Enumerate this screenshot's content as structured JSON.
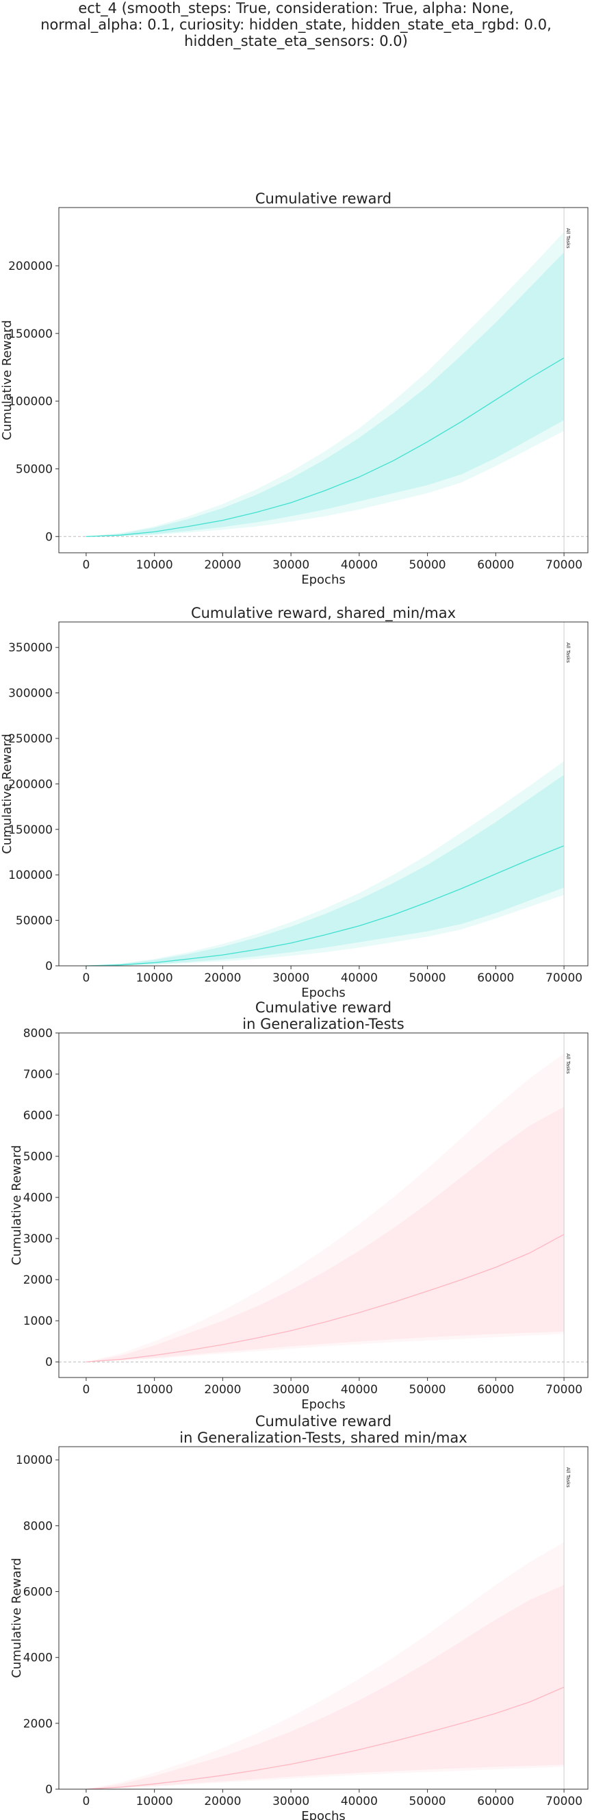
{
  "suptitle": [
    "ect_4 (smooth_steps: True, consideration: True, alpha: None,",
    "normal_alpha: 0.1, curiosity: hidden_state, hidden_state_eta_rgbd: 0.0,",
    "hidden_state_eta_sensors: 0.0)"
  ],
  "chart_data": [
    {
      "type": "line",
      "title": [
        "Cumulative reward"
      ],
      "xlabel": "Epochs",
      "ylabel": "Cumulative Reward",
      "xlim": [
        -4000,
        73500
      ],
      "ylim": [
        -12000,
        243000
      ],
      "xticks": [
        0,
        10000,
        20000,
        30000,
        40000,
        50000,
        60000,
        70000
      ],
      "yticks": [
        0,
        50000,
        100000,
        150000,
        200000
      ],
      "vline": {
        "x": 70000,
        "label": "All Tasks"
      },
      "zero_line": true,
      "colors": {
        "line": "#40E0D0",
        "band": "#40E0D0"
      },
      "series": [
        {
          "x": [
            0,
            5000,
            10000,
            15000,
            20000,
            25000,
            30000,
            35000,
            40000,
            45000,
            50000,
            55000,
            60000,
            65000,
            70000
          ],
          "mean": [
            0,
            1000,
            3500,
            7500,
            12000,
            18000,
            25000,
            34000,
            44000,
            56000,
            70000,
            85000,
            101000,
            117000,
            132000
          ],
          "min": [
            0,
            300,
            1200,
            3000,
            5000,
            7500,
            11000,
            15000,
            20000,
            26000,
            32000,
            40000,
            52000,
            65000,
            78000
          ],
          "max": [
            0,
            2500,
            7500,
            15000,
            24000,
            35000,
            48000,
            63000,
            80000,
            100000,
            122000,
            147000,
            172000,
            198000,
            225000
          ],
          "inner_low": [
            0,
            500,
            1800,
            4200,
            7000,
            10500,
            15000,
            20000,
            26000,
            32000,
            38000,
            46000,
            58000,
            72000,
            86000
          ],
          "inner_high": [
            0,
            2000,
            6500,
            13000,
            21000,
            31000,
            43000,
            57000,
            73000,
            91000,
            111000,
            134000,
            158000,
            184000,
            210000
          ]
        }
      ]
    },
    {
      "type": "line",
      "title": [
        "Cumulative reward, shared_min/max"
      ],
      "xlabel": "Epochs",
      "ylabel": "Cumulative Reward",
      "xlim": [
        -4000,
        73500
      ],
      "ylim": [
        0,
        378000
      ],
      "xticks": [
        0,
        10000,
        20000,
        30000,
        40000,
        50000,
        60000,
        70000
      ],
      "yticks": [
        0,
        50000,
        100000,
        150000,
        200000,
        250000,
        300000,
        350000
      ],
      "vline": {
        "x": 70000,
        "label": "All Tasks"
      },
      "zero_line": false,
      "colors": {
        "line": "#40E0D0",
        "band": "#40E0D0"
      },
      "series": [
        {
          "x": [
            0,
            5000,
            10000,
            15000,
            20000,
            25000,
            30000,
            35000,
            40000,
            45000,
            50000,
            55000,
            60000,
            65000,
            70000
          ],
          "mean": [
            0,
            1000,
            3500,
            7500,
            12000,
            18000,
            25000,
            34000,
            44000,
            56000,
            70000,
            85000,
            101000,
            117000,
            132000
          ],
          "min": [
            0,
            300,
            1200,
            3000,
            5000,
            7500,
            11000,
            15000,
            20000,
            26000,
            32000,
            40000,
            52000,
            65000,
            78000
          ],
          "max": [
            0,
            2500,
            7500,
            15000,
            24000,
            35000,
            48000,
            63000,
            80000,
            100000,
            122000,
            147000,
            172000,
            198000,
            225000
          ],
          "inner_low": [
            0,
            500,
            1800,
            4200,
            7000,
            10500,
            15000,
            20000,
            26000,
            32000,
            38000,
            46000,
            58000,
            72000,
            86000
          ],
          "inner_high": [
            0,
            2000,
            6500,
            13000,
            21000,
            31000,
            43000,
            57000,
            73000,
            91000,
            111000,
            134000,
            158000,
            184000,
            210000
          ]
        }
      ]
    },
    {
      "type": "line",
      "title": [
        "Cumulative reward",
        "in Generalization-Tests"
      ],
      "xlabel": "Epochs",
      "ylabel": "Cumulative Reward",
      "xlim": [
        -4000,
        73500
      ],
      "ylim": [
        -380,
        8000
      ],
      "xticks": [
        0,
        10000,
        20000,
        30000,
        40000,
        50000,
        60000,
        70000
      ],
      "yticks": [
        0,
        1000,
        2000,
        3000,
        4000,
        5000,
        6000,
        7000,
        8000
      ],
      "vline": {
        "x": 70000,
        "label": "All Tasks"
      },
      "zero_line": true,
      "colors": {
        "line": "#FFB6C1",
        "band": "#FFB6C1"
      },
      "series": [
        {
          "x": [
            0,
            5000,
            10000,
            15000,
            20000,
            25000,
            30000,
            35000,
            40000,
            45000,
            50000,
            55000,
            60000,
            65000,
            70000
          ],
          "mean": [
            0,
            60,
            160,
            280,
            420,
            580,
            760,
            970,
            1200,
            1450,
            1720,
            2000,
            2300,
            2650,
            3100
          ],
          "min": [
            0,
            30,
            80,
            140,
            200,
            260,
            320,
            380,
            430,
            480,
            520,
            560,
            600,
            640,
            680
          ],
          "max": [
            0,
            200,
            500,
            850,
            1250,
            1700,
            2200,
            2750,
            3350,
            4000,
            4700,
            5450,
            6200,
            6900,
            7500
          ],
          "inner_low": [
            0,
            40,
            100,
            170,
            240,
            310,
            380,
            440,
            500,
            550,
            600,
            640,
            680,
            710,
            740
          ],
          "inner_high": [
            0,
            150,
            400,
            700,
            1000,
            1350,
            1750,
            2200,
            2700,
            3250,
            3850,
            4500,
            5150,
            5750,
            6200
          ]
        }
      ]
    },
    {
      "type": "line",
      "title": [
        "Cumulative reward",
        "in Generalization-Tests, shared min/max"
      ],
      "xlabel": "Epochs",
      "ylabel": "Cumulative Reward",
      "xlim": [
        -4000,
        73500
      ],
      "ylim": [
        0,
        10400
      ],
      "xticks": [
        0,
        10000,
        20000,
        30000,
        40000,
        50000,
        60000,
        70000
      ],
      "yticks": [
        0,
        2000,
        4000,
        6000,
        8000,
        10000
      ],
      "vline": {
        "x": 70000,
        "label": "All Tasks"
      },
      "zero_line": false,
      "colors": {
        "line": "#FFB6C1",
        "band": "#FFB6C1"
      },
      "series": [
        {
          "x": [
            0,
            5000,
            10000,
            15000,
            20000,
            25000,
            30000,
            35000,
            40000,
            45000,
            50000,
            55000,
            60000,
            65000,
            70000
          ],
          "mean": [
            0,
            60,
            160,
            280,
            420,
            580,
            760,
            970,
            1200,
            1450,
            1720,
            2000,
            2300,
            2650,
            3100
          ],
          "min": [
            0,
            30,
            80,
            140,
            200,
            260,
            320,
            380,
            430,
            480,
            520,
            560,
            600,
            640,
            680
          ],
          "max": [
            0,
            200,
            500,
            850,
            1250,
            1700,
            2200,
            2750,
            3350,
            4000,
            4700,
            5450,
            6200,
            6900,
            7500
          ],
          "inner_low": [
            0,
            40,
            100,
            170,
            240,
            310,
            380,
            440,
            500,
            550,
            600,
            640,
            680,
            710,
            740
          ],
          "inner_high": [
            0,
            150,
            400,
            700,
            1000,
            1350,
            1750,
            2200,
            2700,
            3250,
            3850,
            4500,
            5150,
            5750,
            6200
          ]
        }
      ]
    }
  ]
}
